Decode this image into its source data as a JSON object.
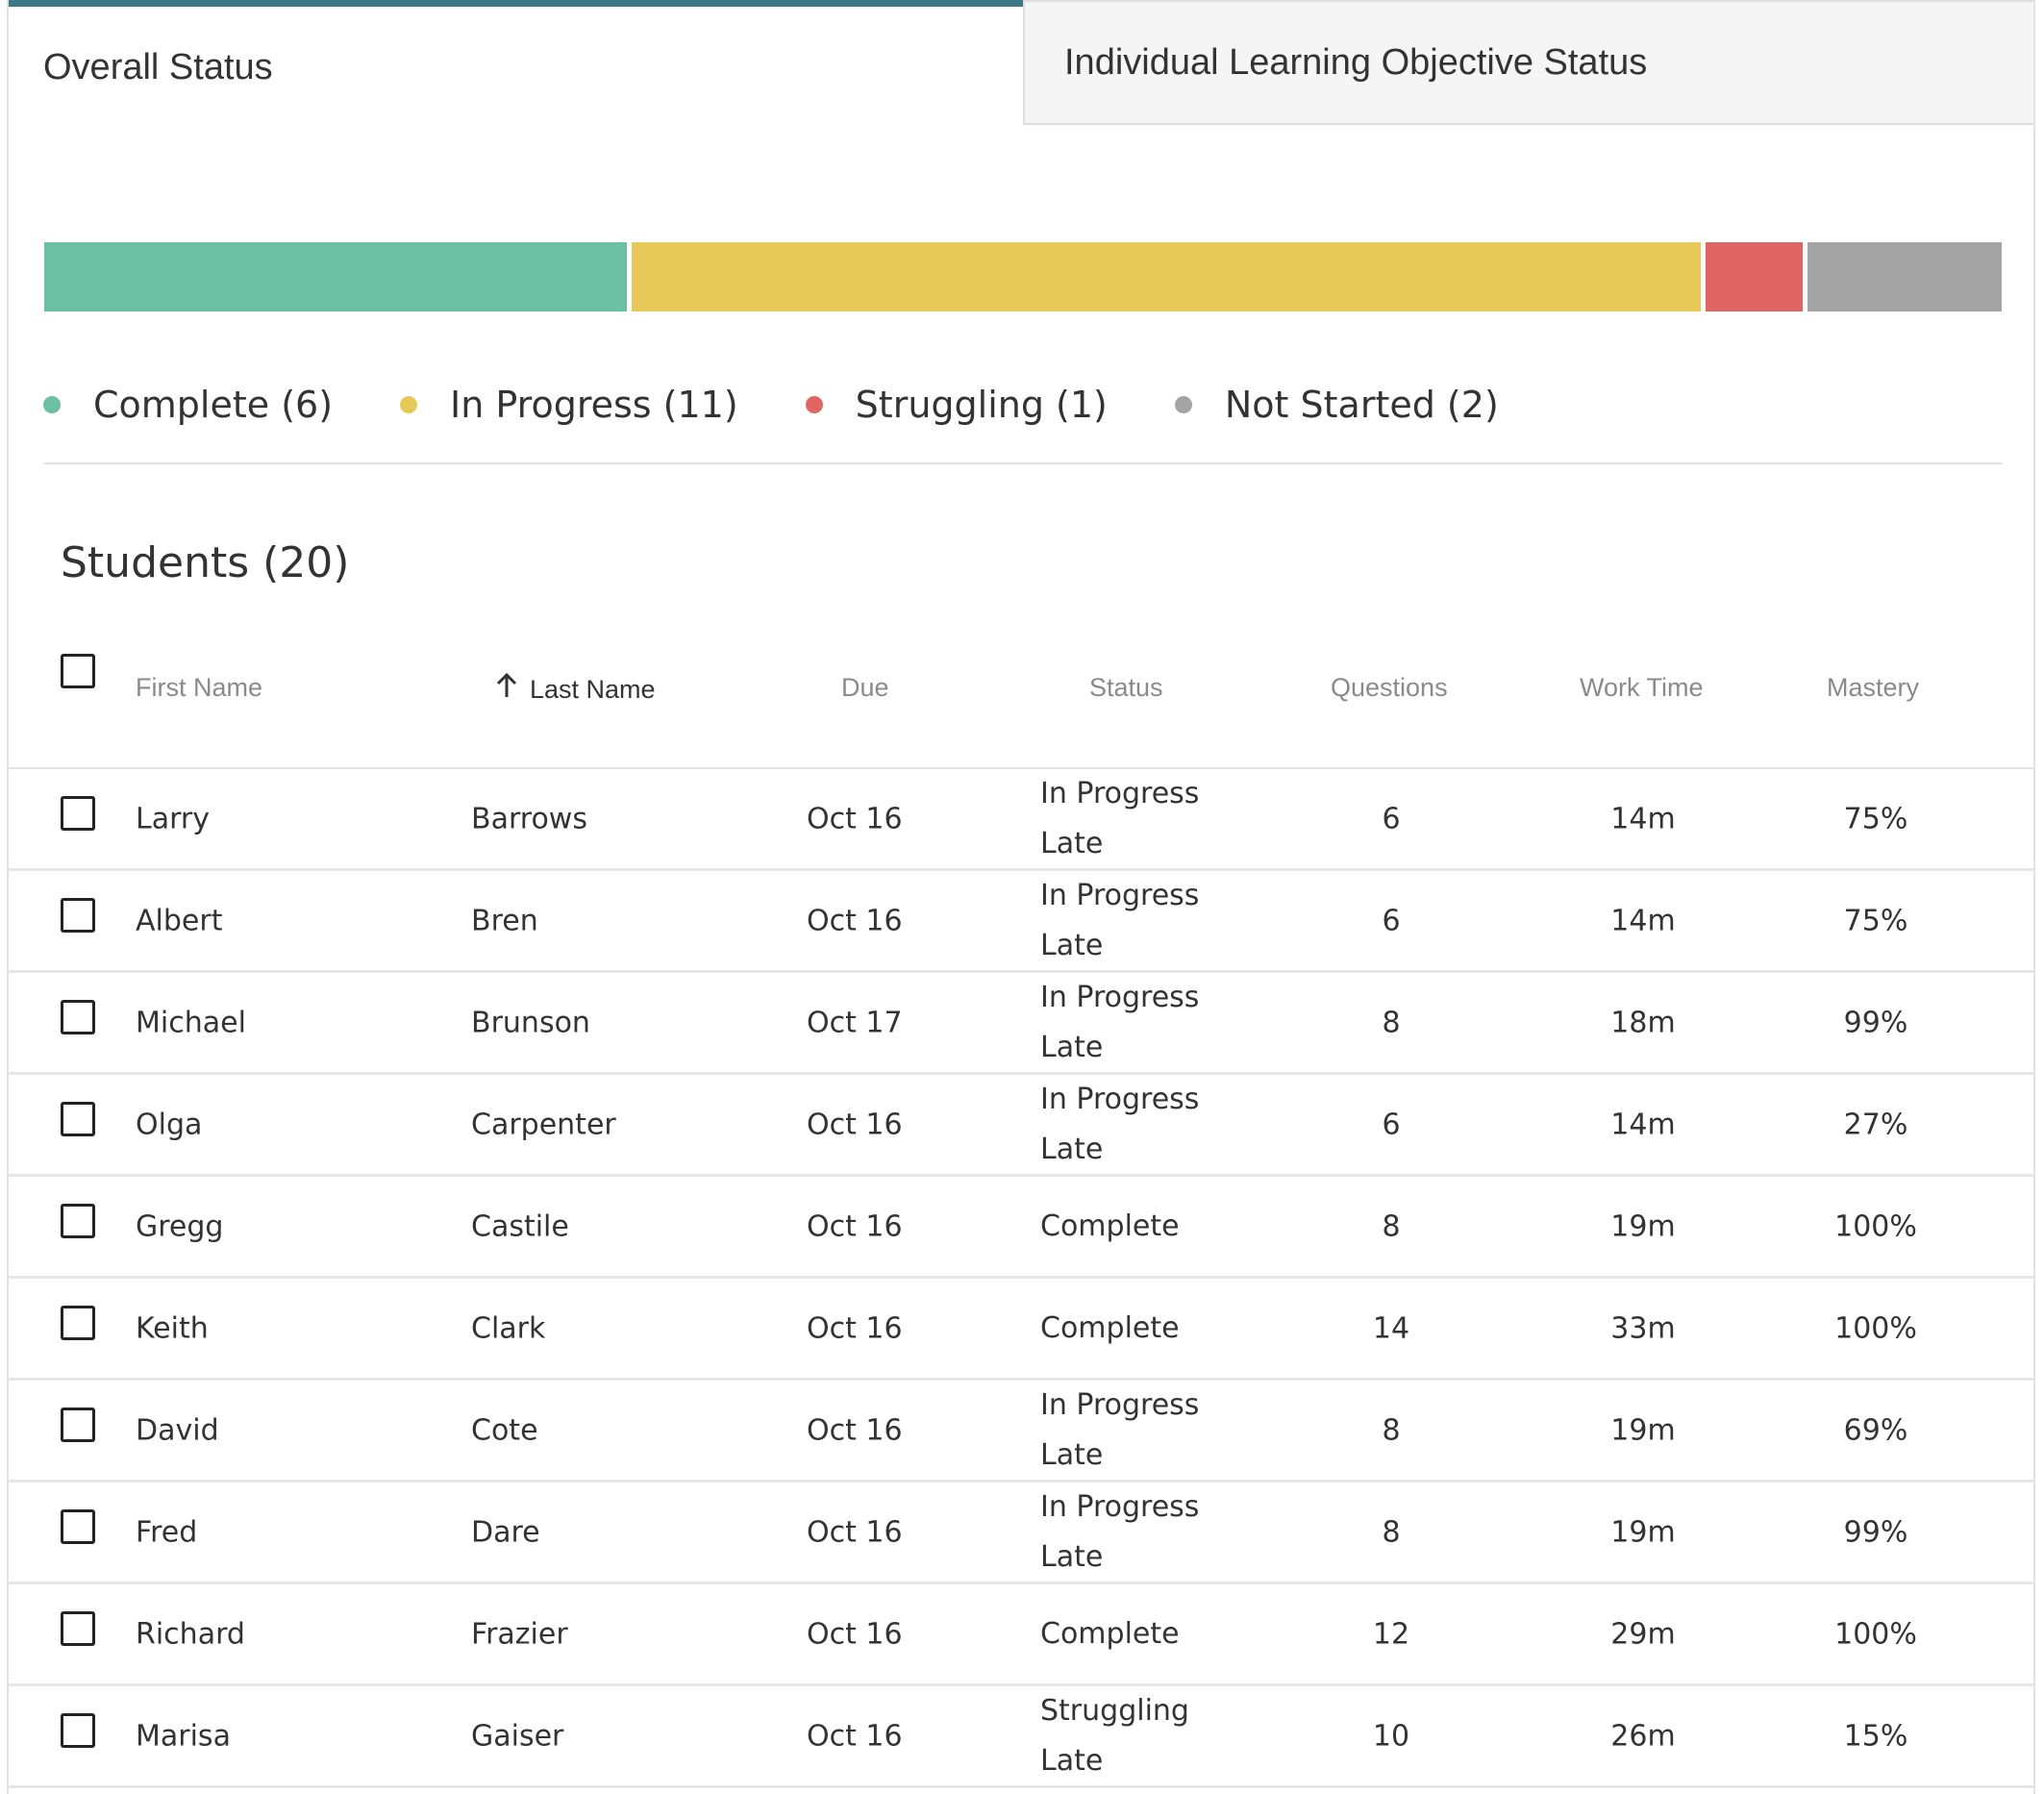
{
  "tabs": [
    {
      "label": "Overall Status",
      "active": true
    },
    {
      "label": "Individual Learning Objective Status",
      "active": false
    }
  ],
  "colors": {
    "accent": "#3c7a89",
    "complete": "#6bbfa3",
    "in_progress": "#e7c95a",
    "struggling": "#e06666",
    "not_started": "#a4a4a4"
  },
  "summary": {
    "segments": [
      {
        "key": "complete",
        "label": "Complete (6)",
        "count": 6,
        "color": "#6bbfa3"
      },
      {
        "key": "in_progress",
        "label": "In Progress (11)",
        "count": 11,
        "color": "#e7c95a"
      },
      {
        "key": "struggling",
        "label": "Struggling (1)",
        "count": 1,
        "color": "#e06666"
      },
      {
        "key": "not_started",
        "label": "Not Started (2)",
        "count": 2,
        "color": "#a4a4a4"
      }
    ]
  },
  "students": {
    "title": "Students (20)",
    "columns": {
      "first_name": "First Name",
      "last_name": "Last Name",
      "due": "Due",
      "status": "Status",
      "questions": "Questions",
      "work_time": "Work Time",
      "mastery": "Mastery"
    },
    "sort_column": "last_name",
    "rows": [
      {
        "first": "Larry",
        "last": "Barrows",
        "due": "Oct 16",
        "status": "In Progress",
        "late": "Late",
        "questions": "6",
        "time": "14m",
        "mastery": "75%"
      },
      {
        "first": "Albert",
        "last": "Bren",
        "due": "Oct 16",
        "status": "In Progress",
        "late": "Late",
        "questions": "6",
        "time": "14m",
        "mastery": "75%"
      },
      {
        "first": "Michael",
        "last": "Brunson",
        "due": "Oct 17",
        "status": "In Progress",
        "late": "Late",
        "questions": "8",
        "time": "18m",
        "mastery": "99%"
      },
      {
        "first": "Olga",
        "last": "Carpenter",
        "due": "Oct 16",
        "status": "In Progress",
        "late": "Late",
        "questions": "6",
        "time": "14m",
        "mastery": "27%"
      },
      {
        "first": "Gregg",
        "last": "Castile",
        "due": "Oct 16",
        "status": "Complete",
        "late": "",
        "questions": "8",
        "time": "19m",
        "mastery": "100%"
      },
      {
        "first": "Keith",
        "last": "Clark",
        "due": "Oct 16",
        "status": "Complete",
        "late": "",
        "questions": "14",
        "time": "33m",
        "mastery": "100%"
      },
      {
        "first": "David",
        "last": "Cote",
        "due": "Oct 16",
        "status": "In Progress",
        "late": "Late",
        "questions": "8",
        "time": "19m",
        "mastery": "69%"
      },
      {
        "first": "Fred",
        "last": "Dare",
        "due": "Oct 16",
        "status": "In Progress",
        "late": "Late",
        "questions": "8",
        "time": "19m",
        "mastery": "99%"
      },
      {
        "first": "Richard",
        "last": "Frazier",
        "due": "Oct 16",
        "status": "Complete",
        "late": "",
        "questions": "12",
        "time": "29m",
        "mastery": "100%"
      },
      {
        "first": "Marisa",
        "last": "Gaiser",
        "due": "Oct 16",
        "status": "Struggling",
        "late": "Late",
        "questions": "10",
        "time": "26m",
        "mastery": "15%"
      }
    ]
  }
}
